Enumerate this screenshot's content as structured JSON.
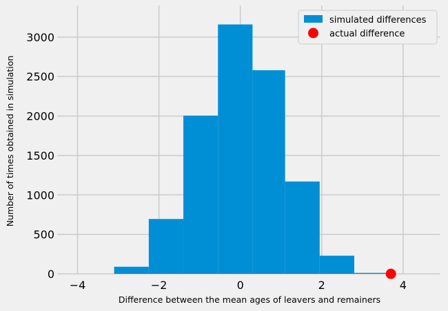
{
  "chart_data": {
    "type": "bar",
    "kind": "histogram",
    "title": "",
    "xlabel": "Difference between the mean ages of leavers and remainers",
    "ylabel": "Number of times obtained in simulation",
    "xlim": [
      -4.5,
      4.9
    ],
    "ylim": [
      0,
      3400
    ],
    "xticks": [
      -4,
      -2,
      0,
      2,
      4
    ],
    "xtick_labels": [
      "−4",
      "−2",
      "0",
      "2",
      "4"
    ],
    "yticks": [
      0,
      500,
      1000,
      1500,
      2000,
      2500,
      3000
    ],
    "ytick_labels": [
      "0",
      "500",
      "1000",
      "1500",
      "2000",
      "2500",
      "3000"
    ],
    "grid": true,
    "series": [
      {
        "name": "simulated differences",
        "color": "#008fd5",
        "bin_edges": [
          -3.1,
          -2.25,
          -1.4,
          -0.55,
          0.3,
          1.1,
          1.95,
          2.8,
          3.7
        ],
        "counts": [
          90,
          695,
          2005,
          3160,
          2580,
          1170,
          230,
          12
        ]
      },
      {
        "name": "actual difference",
        "color": "#ff0000",
        "type": "scatter",
        "x": [
          3.7
        ],
        "y": [
          0
        ]
      }
    ],
    "legend": {
      "position": "top-right",
      "entries": [
        "simulated differences",
        "actual difference"
      ]
    }
  }
}
